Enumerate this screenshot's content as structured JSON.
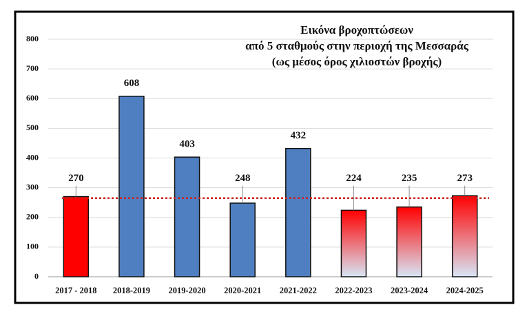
{
  "chart_data": {
    "type": "bar",
    "title": [
      "Εικόνα βροχοπτώσεων",
      "από 5 σταθμούς στην περιοχή της Μεσσαράς",
      "(ως μέσος όρος χιλιοστών βροχής)"
    ],
    "categories": [
      "2017 - 2018",
      "2018-2019",
      "2019-2020",
      "2020-2021",
      "2021-2022",
      "2022-2023",
      "2023-2024",
      "2024-2025"
    ],
    "values": [
      270,
      608,
      403,
      248,
      432,
      224,
      235,
      273
    ],
    "colors": [
      "#ff0000",
      "#4f7fc0",
      "#4f7fc0",
      "#4f7fc0",
      "#4f7fc0",
      {
        "top": "#ff0000",
        "bottom": "#d8e6f6"
      },
      {
        "top": "#ff0000",
        "bottom": "#d8e6f6"
      },
      {
        "top": "#ff0000",
        "bottom": "#d8e6f6"
      }
    ],
    "average_line": {
      "value": 265,
      "color": "#cc2222"
    },
    "ylim": [
      0,
      800
    ],
    "yticks": [
      0,
      100,
      200,
      300,
      400,
      500,
      600,
      700,
      800
    ],
    "grid": true
  }
}
